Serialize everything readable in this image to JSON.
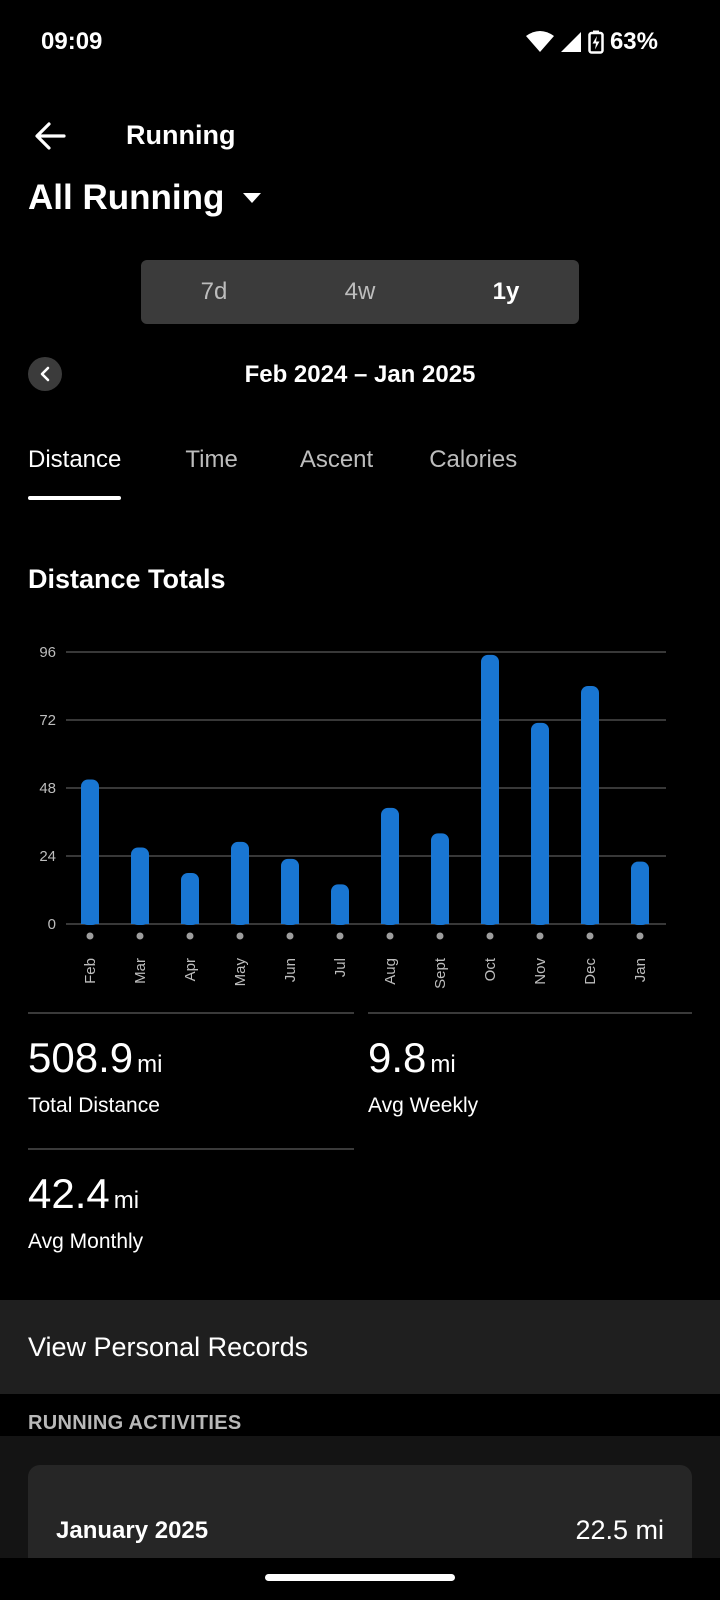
{
  "status_bar": {
    "time": "09:09",
    "battery": "63%"
  },
  "header": {
    "title": "Running"
  },
  "filter": {
    "title": "All Running"
  },
  "range_toggle": {
    "options": [
      "7d",
      "4w",
      "1y"
    ],
    "selected": "1y"
  },
  "period": {
    "label": "Feb 2024 – Jan 2025"
  },
  "metric_tabs": {
    "items": [
      "Distance",
      "Time",
      "Ascent",
      "Calories"
    ],
    "selected": "Distance"
  },
  "section": {
    "title": "Distance Totals"
  },
  "chart_data": {
    "type": "bar",
    "title": "Distance Totals",
    "categories": [
      "Feb",
      "Mar",
      "Apr",
      "May",
      "Jun",
      "Jul",
      "Aug",
      "Sept",
      "Oct",
      "Nov",
      "Dec",
      "Jan"
    ],
    "values": [
      51,
      27,
      18,
      29,
      23,
      14,
      41,
      32,
      95,
      71,
      84,
      22
    ],
    "yticks": [
      "0",
      "24",
      "48",
      "72",
      "96"
    ],
    "ylim": [
      0,
      96
    ],
    "grid": true,
    "bar_color": "#1976d2"
  },
  "stats": {
    "total_distance": {
      "value": "508.9",
      "unit": "mi",
      "label": "Total Distance"
    },
    "avg_weekly": {
      "value": "9.8",
      "unit": "mi",
      "label": "Avg Weekly"
    },
    "avg_monthly": {
      "value": "42.4",
      "unit": "mi",
      "label": "Avg Monthly"
    }
  },
  "records": {
    "label": "View Personal Records"
  },
  "activities": {
    "header": "RUNNING ACTIVITIES",
    "months": [
      {
        "name": "January 2025",
        "total": "22.5 mi"
      }
    ]
  }
}
